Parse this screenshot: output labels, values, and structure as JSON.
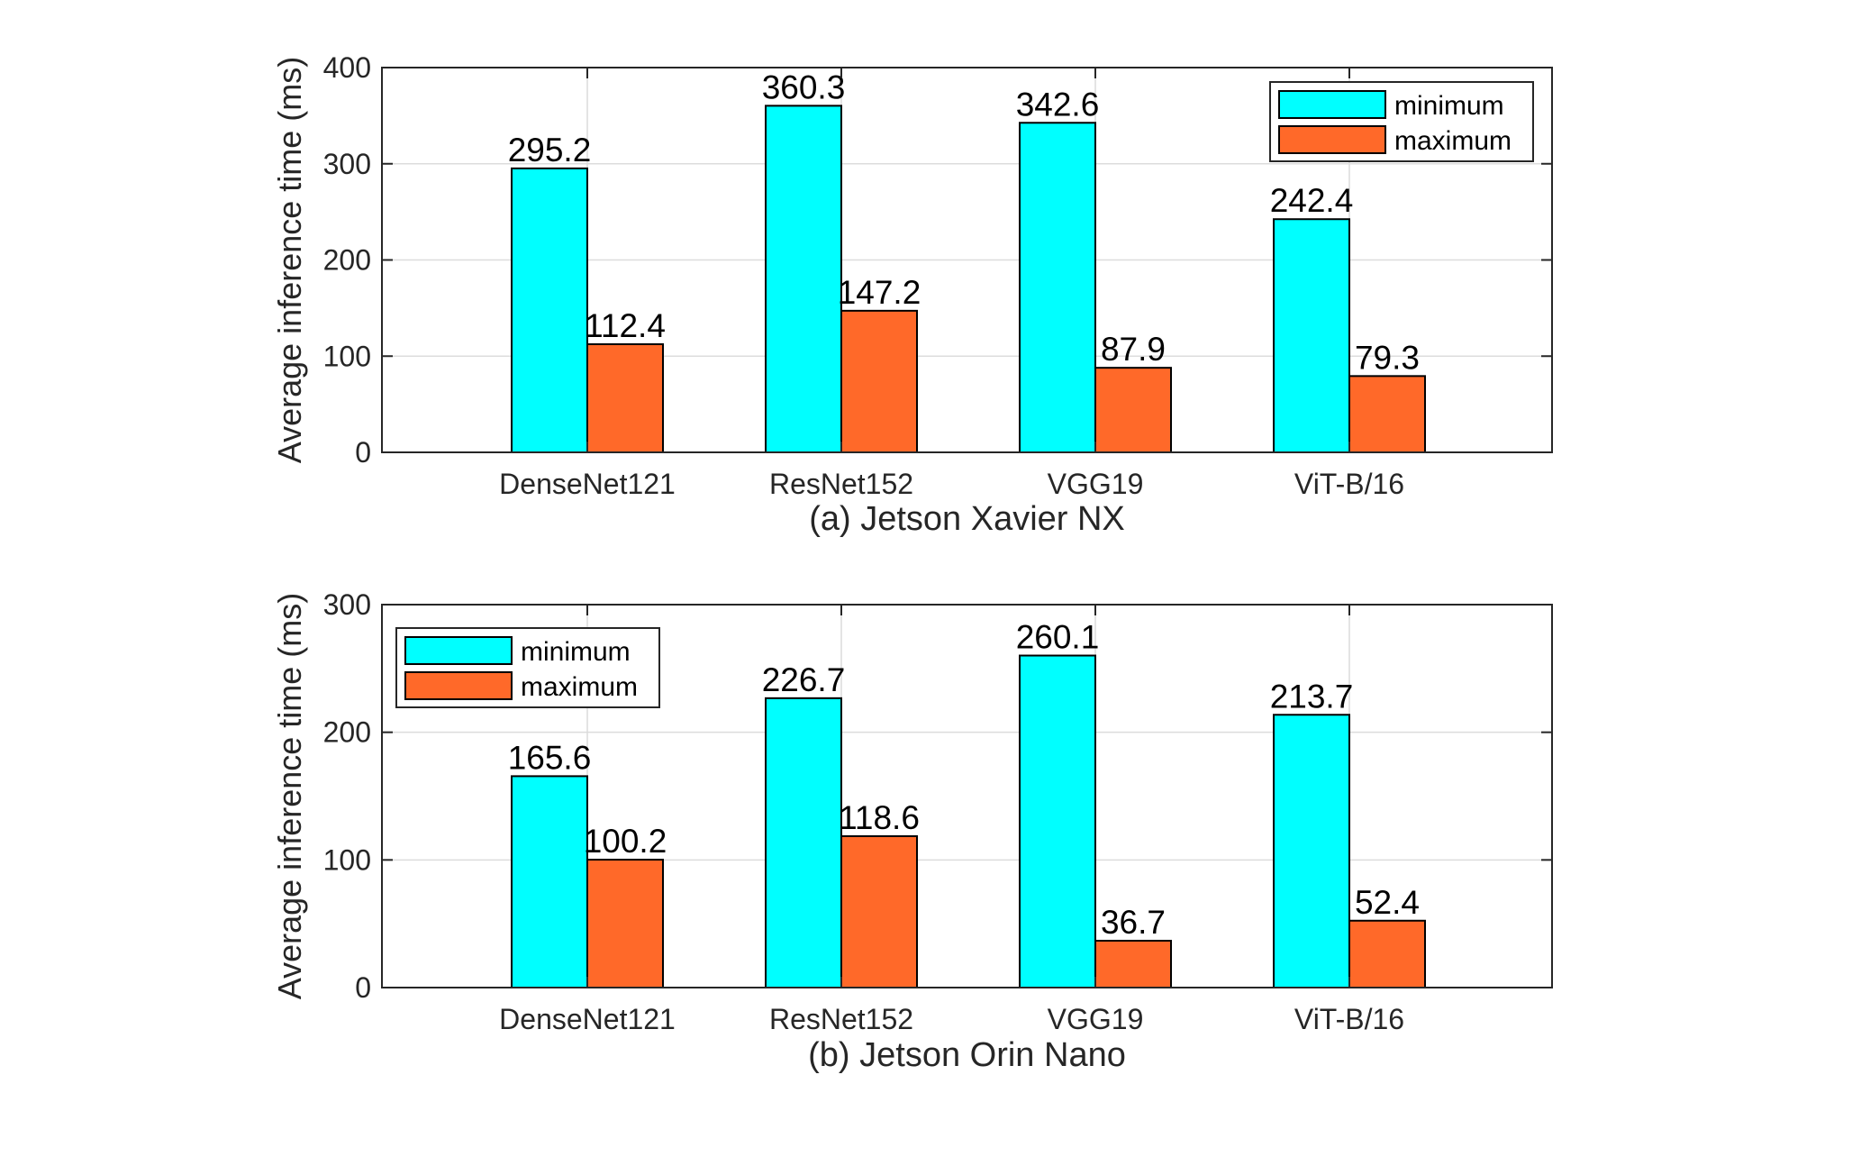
{
  "colors": {
    "minimum": "#00FFFF",
    "maximum": "#FF6929"
  },
  "chart_data": [
    {
      "type": "bar",
      "caption": "(a) Jetson Xavier NX",
      "categories": [
        "DenseNet121",
        "ResNet152",
        "VGG19",
        "ViT-B/16"
      ],
      "series": [
        {
          "name": "minimum",
          "values": [
            295.2,
            360.3,
            342.6,
            242.4
          ]
        },
        {
          "name": "maximum",
          "values": [
            112.4,
            147.2,
            87.9,
            79.3
          ]
        }
      ],
      "value_labels": {
        "minimum": [
          "295.2",
          "360.3",
          "342.6",
          "242.4"
        ],
        "maximum": [
          "112.4",
          "147.2",
          "87.9",
          "79.3"
        ]
      },
      "xlabel": "",
      "ylabel": "Average inference time (ms)",
      "ylim": [
        0,
        400
      ],
      "yticks": [
        0,
        100,
        200,
        300,
        400
      ],
      "ytick_labels": [
        "0",
        "100",
        "200",
        "300",
        "400"
      ],
      "grid": true,
      "legend": {
        "position": "top-right",
        "entries": [
          "minimum",
          "maximum"
        ]
      }
    },
    {
      "type": "bar",
      "caption": "(b) Jetson Orin Nano",
      "categories": [
        "DenseNet121",
        "ResNet152",
        "VGG19",
        "ViT-B/16"
      ],
      "series": [
        {
          "name": "minimum",
          "values": [
            165.6,
            226.7,
            260.1,
            213.7
          ]
        },
        {
          "name": "maximum",
          "values": [
            100.2,
            118.6,
            36.7,
            52.4
          ]
        }
      ],
      "value_labels": {
        "minimum": [
          "165.6",
          "226.7",
          "260.1",
          "213.7"
        ],
        "maximum": [
          "100.2",
          "118.6",
          "36.7",
          "52.4"
        ]
      },
      "xlabel": "",
      "ylabel": "Average inference time (ms)",
      "ylim": [
        0,
        300
      ],
      "yticks": [
        0,
        100,
        200,
        300
      ],
      "ytick_labels": [
        "0",
        "100",
        "200",
        "300"
      ],
      "grid": true,
      "legend": {
        "position": "top-left",
        "entries": [
          "minimum",
          "maximum"
        ]
      }
    }
  ]
}
